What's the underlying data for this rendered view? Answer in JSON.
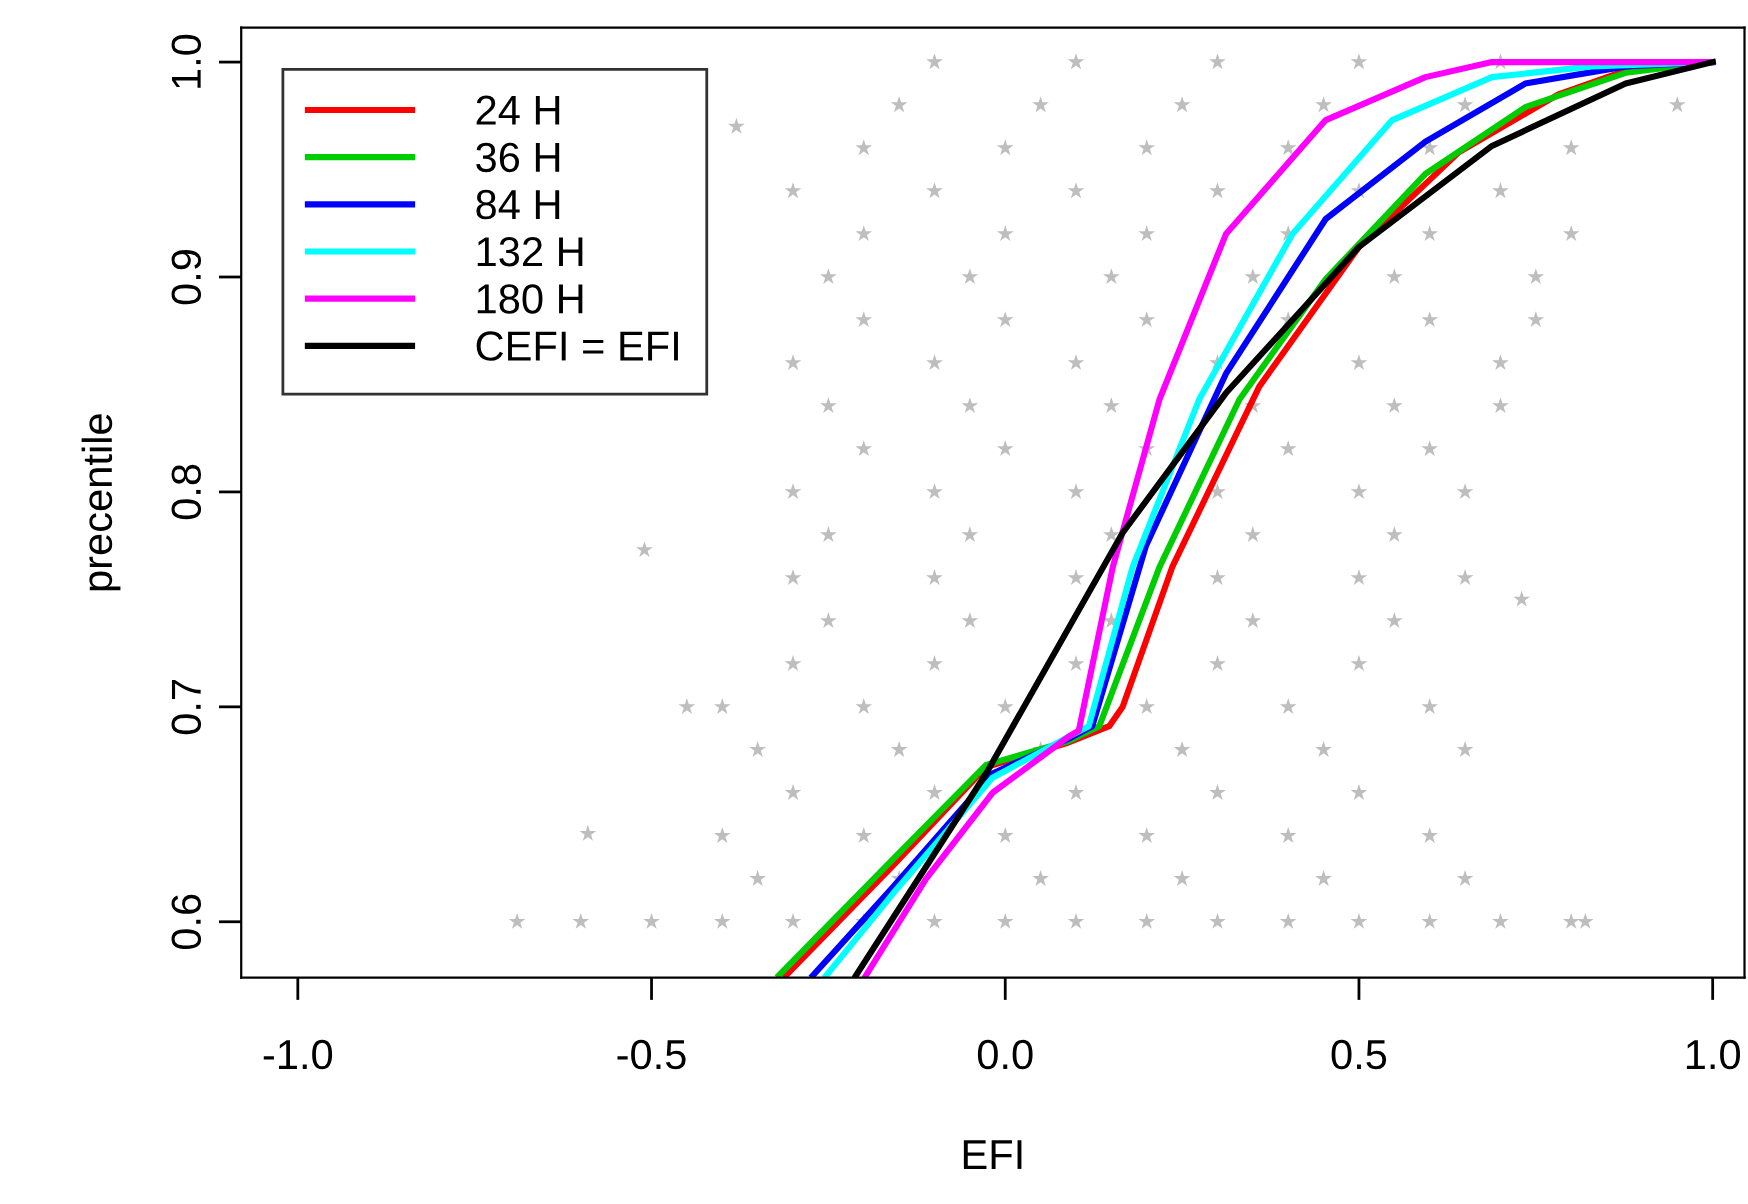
{
  "chart_data": {
    "type": "line",
    "xlabel": "EFI",
    "ylabel": "precentile",
    "xlim": [
      -1.08,
      1.045
    ],
    "ylim": [
      0.574,
      1.016
    ],
    "xticks": [
      {
        "value": -1.0,
        "label": "-1.0"
      },
      {
        "value": -0.5,
        "label": "-0.5"
      },
      {
        "value": 0.0,
        "label": "0.0"
      },
      {
        "value": 0.5,
        "label": "0.5"
      },
      {
        "value": 1.0,
        "label": "1.0"
      }
    ],
    "yticks": [
      {
        "value": 0.6,
        "label": "0.6"
      },
      {
        "value": 0.7,
        "label": "0.7"
      },
      {
        "value": 0.8,
        "label": "0.8"
      },
      {
        "value": 0.9,
        "label": "0.9"
      },
      {
        "value": 1.0,
        "label": "1.0"
      }
    ],
    "grid": false,
    "legend": "top left",
    "line_style": "solid",
    "series": [
      {
        "type": "scatter",
        "color": "#bebebe",
        "marker": "star",
        "x": [
          -0.35,
          -0.15,
          0.05,
          0.25,
          0.45,
          0.65,
          -0.4,
          -0.2,
          0.0,
          0.2,
          0.4,
          0.6,
          -0.3,
          -0.1,
          0.1,
          0.3,
          0.5,
          -0.35,
          -0.15,
          0.05,
          0.25,
          0.45,
          0.65,
          -0.4,
          -0.2,
          0.0,
          0.2,
          0.4,
          0.6,
          -0.3,
          -0.1,
          0.1,
          0.3,
          0.5,
          -0.25,
          -0.05,
          0.15,
          0.35,
          0.55,
          -0.3,
          -0.1,
          0.1,
          0.3,
          0.5,
          0.65,
          -0.25,
          -0.05,
          0.15,
          0.35,
          0.55,
          -0.3,
          -0.1,
          0.1,
          0.3,
          0.5,
          0.65,
          -0.2,
          0.0,
          0.2,
          0.4,
          0.6,
          -0.25,
          -0.05,
          0.15,
          0.35,
          0.55,
          0.7,
          -0.3,
          -0.1,
          0.1,
          0.3,
          0.5,
          0.7,
          -0.2,
          0.0,
          0.2,
          0.4,
          0.6,
          0.75,
          -0.25,
          -0.05,
          0.15,
          0.35,
          0.55,
          0.75,
          -0.2,
          0.0,
          0.2,
          0.4,
          0.6,
          0.8,
          -0.3,
          -0.1,
          0.1,
          0.3,
          0.5,
          0.7,
          -0.2,
          0.0,
          0.2,
          0.4,
          0.6,
          0.8,
          -0.15,
          0.05,
          0.25,
          0.45,
          0.65,
          -0.1,
          0.1,
          0.3,
          0.5,
          0.7,
          -0.69,
          -0.6,
          -0.5,
          -0.4,
          -0.3,
          -0.2,
          -0.1,
          0.0,
          0.1,
          0.2,
          0.3,
          0.4,
          0.5,
          0.6,
          0.7,
          0.8,
          -0.59,
          -0.51,
          -0.45,
          -0.38,
          0.82,
          0.73,
          0.95
        ],
        "values": [
          0.62,
          0.62,
          0.62,
          0.62,
          0.62,
          0.62,
          0.64,
          0.64,
          0.64,
          0.64,
          0.64,
          0.64,
          0.66,
          0.66,
          0.66,
          0.66,
          0.66,
          0.68,
          0.68,
          0.68,
          0.68,
          0.68,
          0.68,
          0.7,
          0.7,
          0.7,
          0.7,
          0.7,
          0.7,
          0.72,
          0.72,
          0.72,
          0.72,
          0.72,
          0.74,
          0.74,
          0.74,
          0.74,
          0.74,
          0.76,
          0.76,
          0.76,
          0.76,
          0.76,
          0.76,
          0.78,
          0.78,
          0.78,
          0.78,
          0.78,
          0.8,
          0.8,
          0.8,
          0.8,
          0.8,
          0.8,
          0.82,
          0.82,
          0.82,
          0.82,
          0.82,
          0.84,
          0.84,
          0.84,
          0.84,
          0.84,
          0.84,
          0.86,
          0.86,
          0.86,
          0.86,
          0.86,
          0.86,
          0.88,
          0.88,
          0.88,
          0.88,
          0.88,
          0.88,
          0.9,
          0.9,
          0.9,
          0.9,
          0.9,
          0.9,
          0.92,
          0.92,
          0.92,
          0.92,
          0.92,
          0.92,
          0.94,
          0.94,
          0.94,
          0.94,
          0.94,
          0.94,
          0.96,
          0.96,
          0.96,
          0.96,
          0.96,
          0.96,
          0.98,
          0.98,
          0.98,
          0.98,
          0.98,
          1.0,
          1.0,
          1.0,
          1.0,
          1.0,
          0.6,
          0.6,
          0.6,
          0.6,
          0.6,
          0.6,
          0.6,
          0.6,
          0.6,
          0.6,
          0.6,
          0.6,
          0.6,
          0.6,
          0.6,
          0.6,
          0.641,
          0.773,
          0.7,
          0.97,
          0.6,
          0.75,
          0.98
        ]
      },
      {
        "name": "24 H",
        "color": "#ff0000",
        "x": [
          -0.31,
          -0.159,
          -0.027,
          0.086,
          0.147,
          0.166,
          0.236,
          0.359,
          0.5,
          0.641,
          0.782,
          0.877,
          1.0
        ],
        "values": [
          0.575,
          0.626,
          0.672,
          0.683,
          0.691,
          0.7,
          0.765,
          0.849,
          0.914,
          0.958,
          0.985,
          0.996,
          1.0
        ]
      },
      {
        "name": "36 H",
        "color": "#00cd00",
        "x": [
          -0.32,
          -0.159,
          -0.027,
          0.089,
          0.133,
          0.218,
          0.331,
          0.453,
          0.594,
          0.735,
          0.877,
          1.0
        ],
        "values": [
          0.575,
          0.629,
          0.673,
          0.684,
          0.691,
          0.765,
          0.843,
          0.899,
          0.948,
          0.979,
          0.995,
          1.0
        ]
      },
      {
        "name": "84 H",
        "color": "#0000ff",
        "x": [
          -0.272,
          -0.159,
          -0.018,
          0.089,
          0.123,
          0.199,
          0.312,
          0.453,
          0.594,
          0.735,
          0.877,
          1.0
        ],
        "values": [
          0.575,
          0.616,
          0.669,
          0.685,
          0.691,
          0.775,
          0.855,
          0.927,
          0.963,
          0.99,
          0.998,
          1.0
        ]
      },
      {
        "name": "132 H",
        "color": "#00ffff",
        "x": [
          -0.253,
          -0.159,
          -0.018,
          0.089,
          0.118,
          0.18,
          0.274,
          0.406,
          0.547,
          0.688,
          0.829,
          1.0
        ],
        "values": [
          0.575,
          0.613,
          0.667,
          0.686,
          0.691,
          0.765,
          0.843,
          0.92,
          0.973,
          0.993,
          0.998,
          1.0
        ]
      },
      {
        "name": "180 H",
        "color": "#ff00ff",
        "x": [
          -0.197,
          -0.112,
          -0.018,
          0.089,
          0.104,
          0.152,
          0.218,
          0.312,
          0.453,
          0.594,
          0.688,
          1.0
        ],
        "values": [
          0.575,
          0.62,
          0.66,
          0.686,
          0.689,
          0.765,
          0.843,
          0.92,
          0.973,
          0.993,
          1.0,
          1.0
        ]
      },
      {
        "name": "CEFI = EFI",
        "color": "#000000",
        "x": [
          -0.211,
          -0.027,
          0.166,
          0.312,
          0.5,
          0.688,
          0.877,
          1.0
        ],
        "values": [
          0.575,
          0.669,
          0.781,
          0.846,
          0.914,
          0.961,
          0.99,
          1.0
        ]
      }
    ]
  }
}
